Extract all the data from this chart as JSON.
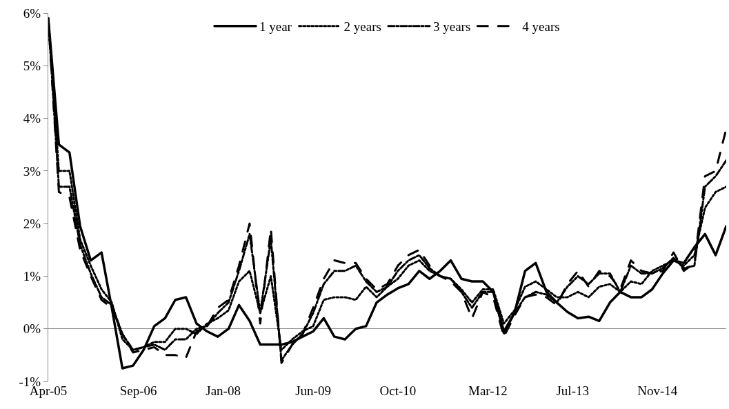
{
  "chart_data": {
    "type": "line",
    "x": [
      "2005-04",
      "2005-06",
      "2005-08",
      "2005-10",
      "2005-12",
      "2006-02",
      "2006-04",
      "2006-06",
      "2006-08",
      "2006-10",
      "2006-12",
      "2007-02",
      "2007-04",
      "2007-06",
      "2007-08",
      "2007-10",
      "2007-12",
      "2008-02",
      "2008-04",
      "2008-06",
      "2008-08",
      "2008-10",
      "2008-12",
      "2009-02",
      "2009-04",
      "2009-06",
      "2009-08",
      "2009-10",
      "2009-12",
      "2010-02",
      "2010-04",
      "2010-06",
      "2010-08",
      "2010-10",
      "2010-12",
      "2011-02",
      "2011-04",
      "2011-06",
      "2011-08",
      "2011-10",
      "2011-12",
      "2012-02",
      "2012-04",
      "2012-06",
      "2012-08",
      "2012-10",
      "2012-12",
      "2013-02",
      "2013-04",
      "2013-06",
      "2013-08",
      "2013-10",
      "2013-12",
      "2014-02",
      "2014-04",
      "2014-06",
      "2014-08",
      "2014-10",
      "2014-12",
      "2015-02",
      "2015-04",
      "2015-06",
      "2015-08",
      "2015-10",
      "2015-12"
    ],
    "series": [
      {
        "name": "1 year",
        "color": "#000000",
        "line_style": "solid",
        "values": [
          5.9,
          3.5,
          3.35,
          1.95,
          1.3,
          1.45,
          0.4,
          -0.75,
          -0.7,
          -0.4,
          0.05,
          0.2,
          0.55,
          0.6,
          0.1,
          -0.05,
          -0.15,
          0.0,
          0.45,
          0.15,
          -0.3,
          -0.3,
          -0.3,
          -0.25,
          -0.15,
          -0.05,
          0.2,
          -0.15,
          -0.2,
          0.0,
          0.05,
          0.5,
          0.65,
          0.77,
          0.85,
          1.1,
          0.95,
          1.1,
          1.3,
          0.95,
          0.9,
          0.9,
          0.7,
          -0.05,
          0.3,
          1.1,
          1.25,
          0.7,
          0.5,
          0.32,
          0.2,
          0.23,
          0.15,
          0.5,
          0.7,
          0.6,
          0.6,
          0.75,
          1.05,
          1.3,
          1.25,
          1.55,
          1.8,
          1.4,
          1.95
        ]
      },
      {
        "name": "2 years",
        "color": "#000000",
        "line_style": "dotted",
        "values": [
          5.9,
          3.0,
          3.0,
          1.7,
          1.2,
          0.75,
          0.5,
          -0.2,
          -0.4,
          -0.35,
          -0.25,
          -0.25,
          0.0,
          0.0,
          -0.1,
          0.1,
          0.2,
          0.35,
          0.9,
          1.1,
          0.3,
          1.0,
          -0.4,
          -0.2,
          -0.05,
          0.05,
          0.55,
          0.6,
          0.6,
          0.55,
          0.8,
          0.6,
          0.8,
          0.95,
          1.2,
          1.3,
          1.1,
          1.0,
          0.95,
          0.75,
          0.5,
          0.75,
          0.75,
          0.1,
          0.35,
          0.8,
          0.9,
          0.75,
          0.6,
          0.6,
          0.7,
          0.6,
          0.8,
          0.85,
          0.7,
          0.9,
          0.85,
          1.1,
          1.2,
          1.3,
          1.2,
          1.4,
          2.3,
          2.6,
          2.7
        ]
      },
      {
        "name": "3 years",
        "color": "#000000",
        "line_style": "dashdot",
        "values": [
          5.9,
          2.7,
          2.7,
          1.6,
          1.05,
          0.6,
          0.45,
          -0.1,
          -0.4,
          -0.35,
          -0.3,
          -0.4,
          -0.2,
          -0.2,
          0.0,
          0.05,
          0.3,
          0.5,
          1.1,
          1.8,
          0.3,
          1.7,
          -0.6,
          -0.3,
          -0.1,
          0.3,
          0.85,
          1.1,
          1.1,
          1.2,
          0.9,
          0.7,
          0.8,
          1.1,
          1.3,
          1.4,
          1.15,
          1.0,
          0.95,
          0.7,
          0.4,
          0.7,
          0.7,
          -0.1,
          0.3,
          0.6,
          0.7,
          0.65,
          0.5,
          0.8,
          1.0,
          0.85,
          1.05,
          1.05,
          0.7,
          1.2,
          1.05,
          1.05,
          1.15,
          1.35,
          1.15,
          1.2,
          2.7,
          2.9,
          3.2
        ]
      },
      {
        "name": "4 years",
        "color": "#000000",
        "line_style": "dashed",
        "values": [
          5.9,
          2.6,
          2.5,
          1.5,
          1.0,
          0.55,
          0.4,
          -0.1,
          -0.45,
          -0.4,
          -0.35,
          -0.5,
          -0.5,
          -0.55,
          -0.05,
          0.05,
          0.4,
          0.55,
          1.2,
          2.0,
          0.1,
          1.9,
          -0.65,
          -0.3,
          -0.1,
          0.4,
          0.95,
          1.3,
          1.25,
          1.25,
          0.95,
          0.75,
          0.85,
          1.2,
          1.4,
          1.5,
          1.2,
          1.0,
          0.9,
          0.7,
          0.2,
          0.7,
          0.6,
          -0.15,
          0.25,
          0.6,
          0.65,
          0.6,
          0.45,
          0.85,
          1.1,
          0.8,
          1.1,
          1.0,
          0.75,
          1.3,
          1.1,
          1.05,
          1.1,
          1.45,
          1.1,
          1.25,
          2.9,
          3.0,
          3.8
        ]
      }
    ],
    "xlim": [
      "2005-04-01",
      "2015-12-01"
    ],
    "xticks": [
      {
        "value": "2005-04-01",
        "label": "Apr-05"
      },
      {
        "value": "2006-09-01",
        "label": "Sep-06"
      },
      {
        "value": "2008-01-01",
        "label": "Jan-08"
      },
      {
        "value": "2009-06-01",
        "label": "Jun-09"
      },
      {
        "value": "2010-10-01",
        "label": "Oct-10"
      },
      {
        "value": "2012-03-01",
        "label": "Mar-12"
      },
      {
        "value": "2013-07-01",
        "label": "Jul-13"
      },
      {
        "value": "2014-11-01",
        "label": "Nov-14"
      }
    ],
    "ylim": [
      -1,
      6
    ],
    "yticks": [
      {
        "value": -1,
        "label": "-1%"
      },
      {
        "value": 0,
        "label": "0%"
      },
      {
        "value": 1,
        "label": "1%"
      },
      {
        "value": 2,
        "label": "2%"
      },
      {
        "value": 3,
        "label": "3%"
      },
      {
        "value": 4,
        "label": "4%"
      },
      {
        "value": 5,
        "label": "5%"
      },
      {
        "value": 6,
        "label": "6%"
      }
    ],
    "legend": "top",
    "marker": "none"
  }
}
